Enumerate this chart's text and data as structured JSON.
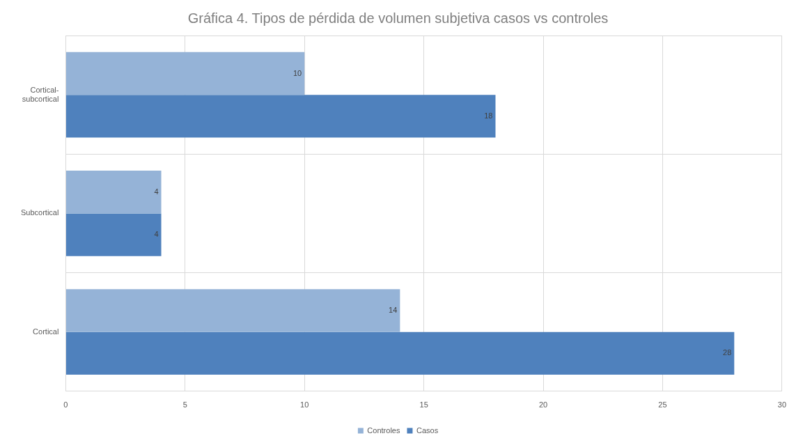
{
  "chart_data": {
    "type": "bar",
    "orientation": "horizontal",
    "title": "Gráfica 4. Tipos de pérdida de volumen subjetiva casos vs controles",
    "categories": [
      "Cortical-subcortical",
      "Subcortical",
      "Cortical"
    ],
    "series": [
      {
        "name": "Controles",
        "color": "#95b3d7",
        "values": [
          10,
          4,
          14
        ]
      },
      {
        "name": "Casos",
        "color": "#4f81bd",
        "values": [
          18,
          4,
          28
        ]
      }
    ],
    "xlim": [
      0,
      30
    ],
    "xticks": [
      0,
      5,
      10,
      15,
      20,
      25,
      30
    ],
    "grid": true,
    "legend": "bottom",
    "data_labels": true
  }
}
